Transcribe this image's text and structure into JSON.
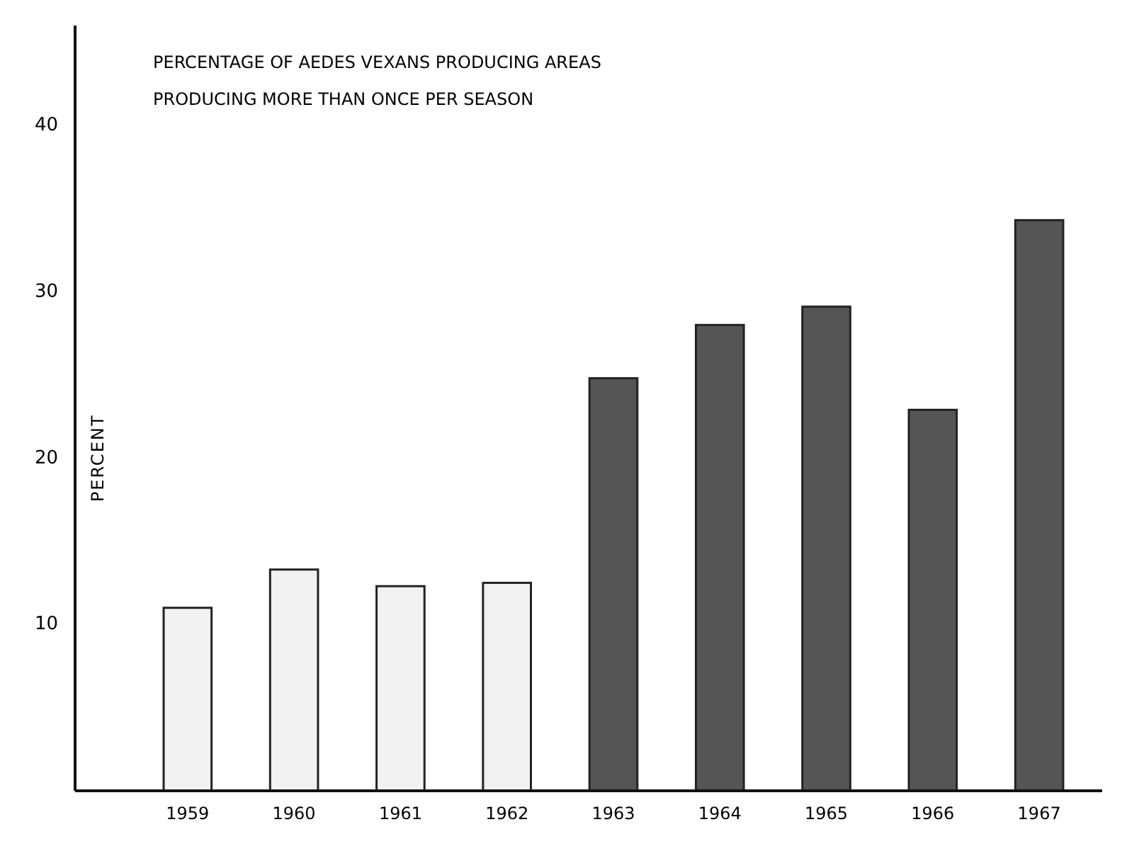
{
  "chart_data": {
    "type": "bar",
    "title": "PERCENTAGE OF AEDES VEXANS PRODUCING AREAS",
    "subtitle": "PRODUCING MORE THAN ONCE PER SEASON",
    "ylabel": "PERCENT",
    "categories": [
      "1959",
      "1960",
      "1961",
      "1962",
      "1963",
      "1964",
      "1965",
      "1966",
      "1967"
    ],
    "values": [
      11.0,
      13.3,
      12.3,
      12.5,
      24.8,
      28.0,
      29.1,
      22.9,
      34.3
    ],
    "colors": [
      "#f2f2f2",
      "#f2f2f2",
      "#f2f2f2",
      "#f2f2f2",
      "#555555",
      "#555555",
      "#555555",
      "#555555",
      "#555555"
    ],
    "ylim": [
      0,
      46
    ],
    "yticks": [
      10,
      20,
      30,
      40
    ],
    "grid": false
  }
}
